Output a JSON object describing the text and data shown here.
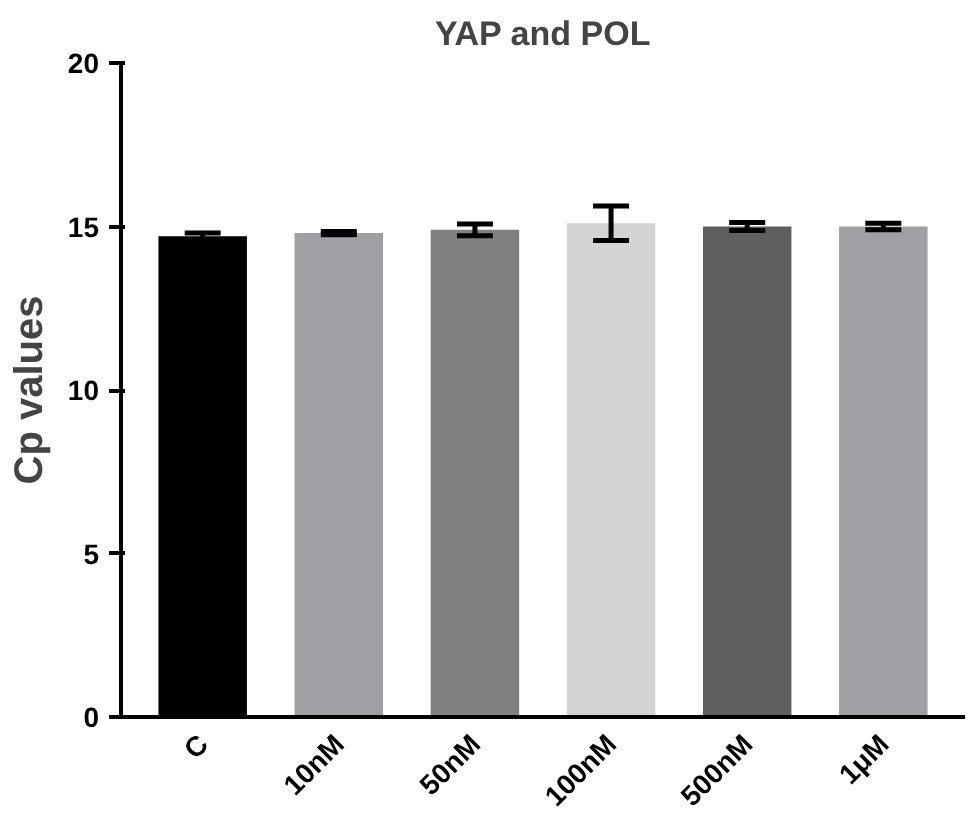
{
  "chart_data": {
    "type": "bar",
    "title": "YAP and POL",
    "ylabel": "Cp values",
    "categories": [
      "C",
      "10nM",
      "50nM",
      "100nM",
      "500nM",
      "1μM"
    ],
    "values": [
      14.7,
      14.8,
      14.9,
      15.1,
      15.0,
      15.0
    ],
    "errors": [
      0.1,
      0.05,
      0.18,
      0.53,
      0.12,
      0.1
    ],
    "colors": [
      "#000000",
      "#a0a0a4",
      "#808080",
      "#d3d3d3",
      "#606060",
      "#a0a0a4"
    ],
    "ylim": [
      0,
      20
    ],
    "yticks": [
      0,
      5,
      10,
      15,
      20
    ],
    "grid": false
  }
}
